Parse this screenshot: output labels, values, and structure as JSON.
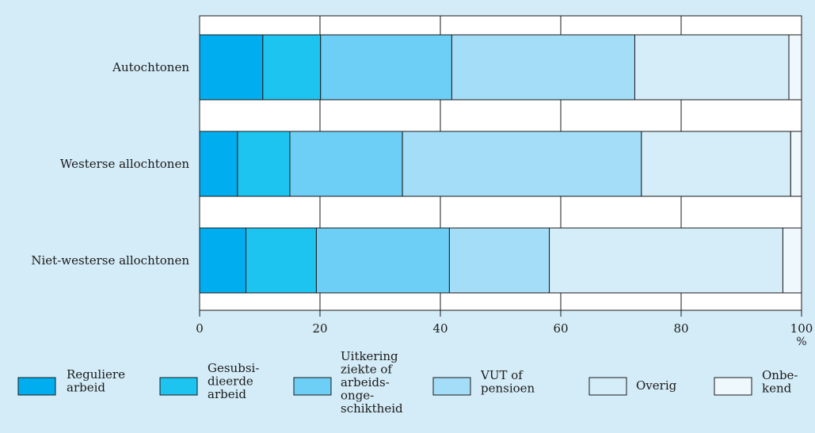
{
  "chart_data": {
    "type": "bar",
    "orientation": "horizontal",
    "stacked": true,
    "categories": [
      "Autochtonen",
      "Westerse allochtonen",
      "Niet-westerse allochtonen"
    ],
    "series": [
      {
        "name": "Reguliere\narbeid",
        "color": "#00aeef",
        "values": [
          10.5,
          6.3,
          7.7
        ]
      },
      {
        "name": "Gesubsi-\ndieerde\narbeid",
        "color": "#1ec4f0",
        "values": [
          9.6,
          8.7,
          11.7
        ]
      },
      {
        "name": "Uitkering\nziekte of\narbeids-\nonge-\nschiktheid",
        "color": "#6dcff5",
        "values": [
          21.8,
          18.7,
          22.1
        ]
      },
      {
        "name": "VUT of\npensioen",
        "color": "#a3ddf7",
        "values": [
          30.4,
          39.7,
          16.6
        ]
      },
      {
        "name": "Overig",
        "color": "#d4edf9",
        "values": [
          25.6,
          24.8,
          38.8
        ]
      },
      {
        "name": "Onbe-\nkend",
        "color": "#eef8fd",
        "values": [
          2.1,
          1.8,
          3.1
        ]
      }
    ],
    "xlim": [
      0,
      100
    ],
    "xticks": [
      "0",
      "20",
      "40",
      "60",
      "80",
      "100"
    ],
    "xunit": "%",
    "grid": true,
    "legend_position": "bottom"
  }
}
